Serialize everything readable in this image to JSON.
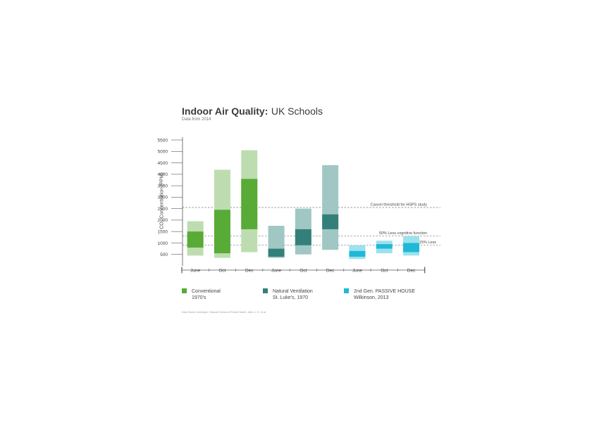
{
  "chart_data": {
    "type": "bar",
    "title_bold": "Indoor Air Quality:",
    "title_rest": "UK Schools",
    "subtitle": "Data from 2014",
    "ylabel": "CO₂ Concentration (PPM)",
    "ylim": [
      0,
      5500
    ],
    "yticks": [
      "5500",
      "5000",
      "4500",
      "4000",
      "3500",
      "3000",
      "2500",
      "2000",
      "1500",
      "1000",
      "500"
    ],
    "categories": [
      "June",
      "Oct",
      "Dec",
      "June",
      "Oct",
      "Dec",
      "June",
      "Oct",
      "Dec"
    ],
    "series": [
      {
        "name": "Conventional 1970's",
        "legend_lines": [
          "Conventional",
          "1970's"
        ],
        "color_light": "#bdddb0",
        "color_dark": "#58ab36",
        "bars": [
          {
            "category": "June",
            "min": 450,
            "low": 800,
            "high": 1500,
            "max": 1950
          },
          {
            "category": "Oct",
            "min": 350,
            "low": 550,
            "high": 2450,
            "max": 4200
          },
          {
            "category": "Dec",
            "min": 600,
            "low": 1600,
            "high": 3800,
            "max": 5050
          }
        ]
      },
      {
        "name": "Natural Ventilation St. Luke's, 1970",
        "legend_lines": [
          "Natural Ventilation",
          "St. Luke's,  1970"
        ],
        "color_light": "#a0c7c4",
        "color_dark": "#33807a",
        "bars": [
          {
            "category": "June",
            "min": 350,
            "low": 400,
            "high": 750,
            "max": 1750
          },
          {
            "category": "Oct",
            "min": 500,
            "low": 900,
            "high": 1600,
            "max": 2500
          },
          {
            "category": "Dec",
            "min": 700,
            "low": 1600,
            "high": 2250,
            "max": 4400
          }
        ]
      },
      {
        "name": "2nd Gen. PASSIVE HOUSE Wilkinson, 2013",
        "legend_lines": [
          "2nd Gen. PASSIVE HOUSE",
          "Wilkinson, 2013"
        ],
        "color_light": "#9ce2ee",
        "color_dark": "#1fb9d7",
        "bars": [
          {
            "category": "June",
            "min": 300,
            "low": 400,
            "high": 650,
            "max": 900
          },
          {
            "category": "Oct",
            "min": 550,
            "low": 750,
            "high": 950,
            "max": 1100
          },
          {
            "category": "Dec",
            "min": 450,
            "low": 600,
            "high": 1000,
            "max": 1300
          }
        ]
      }
    ],
    "reference_lines": [
      {
        "label": "Cancel threshold for HSPS study",
        "value": 2550
      },
      {
        "label": "50% Less cognitive function",
        "value": 1300
      },
      {
        "label": "15% Less",
        "value": 900
      }
    ],
    "source": "Data Source: Architype / Harvard School of Public Health - Allen, J. G. et al."
  }
}
